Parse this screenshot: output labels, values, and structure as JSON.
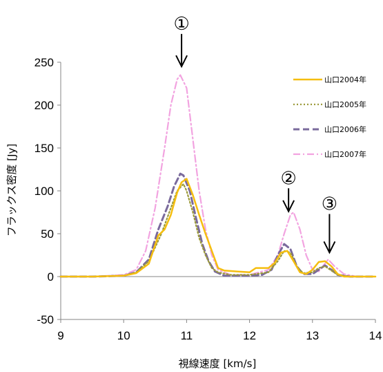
{
  "chart_data": {
    "type": "line",
    "xlabel": "視線速度 [km/s]",
    "ylabel": "フラックス密度 [Jy]",
    "xlim": [
      9,
      14
    ],
    "ylim": [
      -50,
      250
    ],
    "xticks": [
      "9",
      "10",
      "11",
      "12",
      "13",
      "14"
    ],
    "yticks": [
      "-50",
      "0",
      "50",
      "100",
      "150",
      "200",
      "250"
    ],
    "grid": false,
    "legend_position": "top-right",
    "series": [
      {
        "name": "山口2004年",
        "color": "#F5BE0F",
        "dash": "solid",
        "x": [
          9.0,
          9.5,
          10.0,
          10.2,
          10.4,
          10.55,
          10.65,
          10.75,
          10.85,
          10.92,
          11.0,
          11.1,
          11.2,
          11.3,
          11.4,
          11.5,
          11.6,
          11.8,
          12.0,
          12.1,
          12.3,
          12.4,
          12.5,
          12.6,
          12.7,
          12.8,
          12.9,
          13.0,
          13.1,
          13.2,
          13.3,
          13.4,
          13.5,
          13.7,
          14.0
        ],
        "y": [
          0,
          0,
          1,
          4,
          15,
          48,
          55,
          72,
          98,
          110,
          114,
          95,
          72,
          50,
          30,
          10,
          7,
          6,
          5,
          10,
          10,
          16,
          28,
          30,
          18,
          5,
          3,
          8,
          17,
          18,
          12,
          3,
          0,
          0,
          0
        ]
      },
      {
        "name": "山口2005年",
        "color": "#9C9A3A",
        "dash": "dotted",
        "x": [
          9.0,
          9.5,
          10.0,
          10.2,
          10.4,
          10.6,
          10.75,
          10.85,
          10.95,
          11.0,
          11.1,
          11.2,
          11.3,
          11.4,
          11.5,
          11.7,
          12.0,
          12.3,
          12.45,
          12.55,
          12.65,
          12.75,
          12.85,
          13.0,
          13.1,
          13.2,
          13.3,
          13.4,
          13.6,
          14.0
        ],
        "y": [
          0,
          0,
          1,
          5,
          18,
          50,
          80,
          100,
          108,
          100,
          75,
          45,
          25,
          10,
          5,
          2,
          2,
          5,
          18,
          30,
          28,
          12,
          4,
          5,
          10,
          12,
          7,
          2,
          0,
          0
        ]
      },
      {
        "name": "山口2006年",
        "color": "#7A6A9C",
        "dash": "dashed",
        "x": [
          9.0,
          9.5,
          10.0,
          10.2,
          10.4,
          10.55,
          10.7,
          10.8,
          10.9,
          10.95,
          11.05,
          11.15,
          11.25,
          11.35,
          11.45,
          11.6,
          11.8,
          12.0,
          12.2,
          12.35,
          12.45,
          12.55,
          12.65,
          12.75,
          12.85,
          13.0,
          13.1,
          13.2,
          13.3,
          13.4,
          13.6,
          14.0
        ],
        "y": [
          0,
          0,
          1,
          5,
          20,
          55,
          82,
          105,
          120,
          118,
          100,
          68,
          38,
          18,
          6,
          1,
          1,
          1,
          2,
          8,
          25,
          38,
          32,
          12,
          3,
          3,
          8,
          13,
          8,
          2,
          0,
          0
        ]
      },
      {
        "name": "山口2007年",
        "color": "#F2A3E0",
        "dash": "dashdot",
        "x": [
          9.0,
          9.5,
          10.0,
          10.2,
          10.35,
          10.5,
          10.65,
          10.75,
          10.85,
          10.9,
          11.0,
          11.1,
          11.2,
          11.3,
          11.4,
          11.5,
          11.7,
          12.0,
          12.3,
          12.45,
          12.55,
          12.65,
          12.7,
          12.8,
          12.9,
          13.0,
          13.1,
          13.25,
          13.35,
          13.5,
          13.7,
          14.0
        ],
        "y": [
          0,
          0,
          2,
          8,
          30,
          80,
          150,
          200,
          230,
          235,
          220,
          160,
          100,
          55,
          25,
          8,
          2,
          2,
          8,
          25,
          50,
          72,
          75,
          55,
          25,
          8,
          6,
          20,
          12,
          3,
          0,
          0
        ]
      }
    ],
    "annotations": [
      {
        "label": "①",
        "x": 10.92,
        "arrow_from_y": 283,
        "arrow_to_y": 245
      },
      {
        "label": "②",
        "x": 12.62,
        "arrow_from_y": 103,
        "arrow_to_y": 76
      },
      {
        "label": "③",
        "x": 13.27,
        "arrow_from_y": 73,
        "arrow_to_y": 28
      }
    ]
  }
}
